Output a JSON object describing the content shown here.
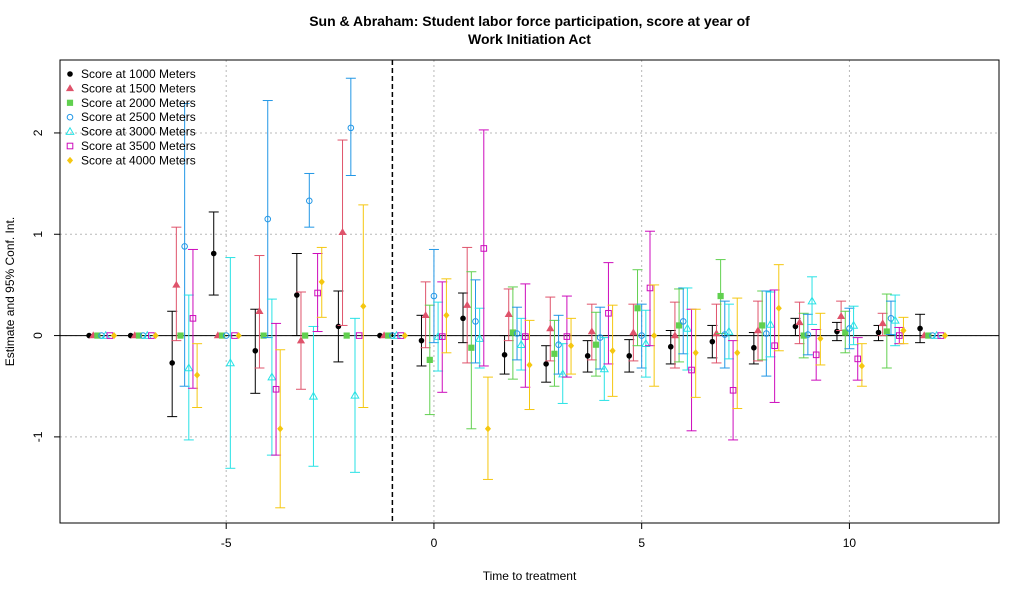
{
  "chart_data": {
    "type": "scatter",
    "title_lines": [
      "Sun & Abraham: Student labor force participation, score at year of",
      "Work Initiation Act"
    ],
    "xlabel": "Time to treatment",
    "ylabel": "Estimate and 95% Conf. Int.",
    "xlim": [
      -9,
      13.6
    ],
    "ylim": [
      -1.85,
      2.72
    ],
    "xticks": [
      -5,
      0,
      5,
      10
    ],
    "yticks": [
      -1,
      0,
      1,
      2
    ],
    "grid": true,
    "reference_line_x": -1,
    "reference_line_y": 0,
    "legend_position": "top-left",
    "series": [
      {
        "name": "Score at 1000 Meters",
        "color": "#000000",
        "marker": "circle-filled",
        "points": [
          [
            -8,
            0,
            0,
            0
          ],
          [
            -7,
            0,
            0,
            0
          ],
          [
            -6,
            -0.27,
            -0.8,
            0.24
          ],
          [
            -5,
            0.81,
            0.4,
            1.22
          ],
          [
            -4,
            -0.15,
            -0.57,
            0.26
          ],
          [
            -3,
            0.4,
            0,
            0.81
          ],
          [
            -2,
            0.09,
            -0.26,
            0.44
          ],
          [
            -1,
            0,
            0,
            0
          ],
          [
            0,
            -0.05,
            -0.3,
            0.2
          ],
          [
            1,
            0.17,
            -0.07,
            0.42
          ],
          [
            2,
            -0.19,
            -0.38,
            0
          ],
          [
            3,
            -0.28,
            -0.46,
            -0.1
          ],
          [
            4,
            -0.2,
            -0.36,
            -0.05
          ],
          [
            5,
            -0.2,
            -0.36,
            -0.04
          ],
          [
            6,
            -0.11,
            -0.28,
            0.05
          ],
          [
            7,
            -0.06,
            -0.22,
            0.1
          ],
          [
            8,
            -0.12,
            -0.28,
            0.03
          ],
          [
            9,
            0.09,
            0,
            0.17
          ],
          [
            10,
            0.04,
            -0.05,
            0.13
          ],
          [
            11,
            0.03,
            -0.05,
            0.1
          ],
          [
            12,
            0.07,
            -0.07,
            0.21
          ]
        ]
      },
      {
        "name": "Score at 1500 Meters",
        "color": "#DF536B",
        "marker": "triangle-filled",
        "points": [
          [
            -8,
            0,
            0,
            0
          ],
          [
            -7,
            0,
            0,
            0
          ],
          [
            -6,
            0.5,
            -0.05,
            1.07
          ],
          [
            -5,
            0,
            0,
            0
          ],
          [
            -4,
            0.24,
            -0.32,
            0.79
          ],
          [
            -3,
            -0.05,
            -0.53,
            0.43
          ],
          [
            -2,
            1.02,
            0.1,
            1.93
          ],
          [
            -1,
            0,
            0,
            0
          ],
          [
            0,
            0.2,
            -0.12,
            0.53
          ],
          [
            1,
            0.3,
            -0.27,
            0.87
          ],
          [
            2,
            0.21,
            -0.05,
            0.46
          ],
          [
            3,
            0.07,
            -0.25,
            0.38
          ],
          [
            4,
            0.04,
            -0.24,
            0.31
          ],
          [
            5,
            0.03,
            -0.25,
            0.31
          ],
          [
            6,
            0,
            -0.32,
            0.33
          ],
          [
            7,
            0.02,
            -0.27,
            0.31
          ],
          [
            8,
            0.05,
            -0.25,
            0.34
          ],
          [
            9,
            0.13,
            -0.08,
            0.33
          ],
          [
            10,
            0.19,
            0.05,
            0.34
          ],
          [
            11,
            0.12,
            0,
            0.22
          ],
          [
            12,
            0,
            0,
            0
          ]
        ]
      },
      {
        "name": "Score at 2000 Meters",
        "color": "#61D04F",
        "marker": "square-filled",
        "points": [
          [
            -8,
            0,
            0,
            0
          ],
          [
            -7,
            0,
            0,
            0
          ],
          [
            -6,
            0,
            0,
            0
          ],
          [
            -5,
            0,
            0,
            0
          ],
          [
            -4,
            0,
            0,
            0
          ],
          [
            -3,
            0,
            0,
            0
          ],
          [
            -2,
            0,
            0,
            0
          ],
          [
            -1,
            0,
            0,
            0
          ],
          [
            0,
            -0.24,
            -0.78,
            0.3
          ],
          [
            1,
            -0.12,
            -0.92,
            0.63
          ],
          [
            2,
            0.03,
            -0.43,
            0.48
          ],
          [
            3,
            -0.18,
            -0.5,
            0.15
          ],
          [
            4,
            -0.09,
            -0.4,
            0.23
          ],
          [
            5,
            0.27,
            -0.1,
            0.65
          ],
          [
            6,
            0.1,
            -0.26,
            0.46
          ],
          [
            7,
            0.39,
            0.02,
            0.75
          ],
          [
            8,
            0.1,
            -0.24,
            0.44
          ],
          [
            9,
            0,
            -0.22,
            0.22
          ],
          [
            10,
            0.03,
            -0.17,
            0.24
          ],
          [
            11,
            0.04,
            -0.32,
            0.41
          ],
          [
            12,
            0,
            0,
            0
          ]
        ]
      },
      {
        "name": "Score at 2500 Meters",
        "color": "#2297E6",
        "marker": "circle-open",
        "points": [
          [
            -8,
            0,
            0,
            0
          ],
          [
            -7,
            0,
            0,
            0
          ],
          [
            -6,
            0.88,
            -0.5,
            2.29
          ],
          [
            -5,
            0,
            0,
            0
          ],
          [
            -4,
            1.15,
            -0.02,
            2.32
          ],
          [
            -3,
            1.33,
            1.07,
            1.6
          ],
          [
            -2,
            2.05,
            1.58,
            2.54
          ],
          [
            -1,
            0,
            0,
            0
          ],
          [
            0,
            0.39,
            -0.07,
            0.85
          ],
          [
            1,
            0.14,
            -0.27,
            0.55
          ],
          [
            2,
            0.02,
            -0.24,
            0.28
          ],
          [
            3,
            -0.09,
            -0.38,
            0.2
          ],
          [
            4,
            -0.02,
            -0.33,
            0.28
          ],
          [
            5,
            0,
            -0.32,
            0.31
          ],
          [
            6,
            0.14,
            -0.18,
            0.47
          ],
          [
            7,
            0.01,
            -0.32,
            0.34
          ],
          [
            8,
            0.02,
            -0.4,
            0.44
          ],
          [
            9,
            0.01,
            -0.19,
            0.21
          ],
          [
            10,
            0.07,
            -0.13,
            0.27
          ],
          [
            11,
            0.17,
            0.01,
            0.34
          ],
          [
            12,
            0,
            0,
            0
          ]
        ]
      },
      {
        "name": "Score at 3000 Meters",
        "color": "#28E2E5",
        "marker": "triangle-open",
        "points": [
          [
            -8,
            0,
            0,
            0
          ],
          [
            -7,
            0,
            0,
            0
          ],
          [
            -6,
            -0.32,
            -1.03,
            0.4
          ],
          [
            -5,
            -0.27,
            -1.31,
            0.77
          ],
          [
            -4,
            -0.41,
            -1.18,
            0.36
          ],
          [
            -3,
            -0.6,
            -1.29,
            0.09
          ],
          [
            -2,
            -0.59,
            -1.35,
            0.17
          ],
          [
            -1,
            0,
            0,
            0
          ],
          [
            0,
            -0.01,
            -0.35,
            0.33
          ],
          [
            1,
            -0.03,
            -0.32,
            0.27
          ],
          [
            2,
            -0.09,
            -0.34,
            0.17
          ],
          [
            3,
            -0.38,
            -0.67,
            -0.08
          ],
          [
            4,
            -0.33,
            -0.64,
            -0.02
          ],
          [
            5,
            -0.08,
            -0.41,
            0.25
          ],
          [
            6,
            0.07,
            -0.34,
            0.47
          ],
          [
            7,
            0.04,
            -0.23,
            0.31
          ],
          [
            8,
            0.11,
            -0.21,
            0.43
          ],
          [
            9,
            0.34,
            0.11,
            0.58
          ],
          [
            10,
            0.1,
            -0.09,
            0.29
          ],
          [
            11,
            0.15,
            -0.1,
            0.4
          ],
          [
            12,
            0,
            0,
            0
          ]
        ]
      },
      {
        "name": "Score at 3500 Meters",
        "color": "#CD0BBC",
        "marker": "square-open",
        "points": [
          [
            -8,
            0,
            0,
            0
          ],
          [
            -7,
            0,
            0,
            0
          ],
          [
            -6,
            0.17,
            -0.52,
            0.85
          ],
          [
            -5,
            0,
            0,
            0
          ],
          [
            -4,
            -0.53,
            -1.18,
            0.12
          ],
          [
            -3,
            0.42,
            0.04,
            0.81
          ],
          [
            -2,
            0,
            0,
            0
          ],
          [
            -1,
            0,
            0,
            0
          ],
          [
            0,
            -0.01,
            -0.56,
            0.53
          ],
          [
            1,
            0.86,
            -0.3,
            2.03
          ],
          [
            2,
            -0.01,
            -0.51,
            0.51
          ],
          [
            3,
            -0.01,
            -0.41,
            0.39
          ],
          [
            4,
            0.22,
            -0.28,
            0.72
          ],
          [
            5,
            0.47,
            -0.1,
            1.03
          ],
          [
            6,
            -0.34,
            -0.94,
            0.26
          ],
          [
            7,
            -0.54,
            -1.03,
            -0.05
          ],
          [
            8,
            -0.1,
            -0.66,
            0.45
          ],
          [
            9,
            -0.19,
            -0.44,
            0.06
          ],
          [
            10,
            -0.23,
            -0.44,
            -0.02
          ],
          [
            11,
            0,
            -0.08,
            0.08
          ],
          [
            12,
            0,
            0,
            0
          ]
        ]
      },
      {
        "name": "Score at 4000 Meters",
        "color": "#F5C710",
        "marker": "diamond-filled",
        "points": [
          [
            -8,
            0,
            0,
            0
          ],
          [
            -7,
            0,
            0,
            0
          ],
          [
            -6,
            -0.39,
            -0.71,
            -0.08
          ],
          [
            -5,
            0,
            0,
            0
          ],
          [
            -4,
            -0.92,
            -1.7,
            -0.14
          ],
          [
            -3,
            0.53,
            0.18,
            0.87
          ],
          [
            -2,
            0.29,
            -0.71,
            1.29
          ],
          [
            -1,
            0,
            0,
            0
          ],
          [
            0,
            0.2,
            -0.17,
            0.56
          ],
          [
            1,
            -0.92,
            -1.42,
            -0.41
          ],
          [
            2,
            -0.29,
            -0.73,
            0.15
          ],
          [
            3,
            -0.1,
            -0.38,
            0.17
          ],
          [
            4,
            -0.15,
            -0.6,
            0.3
          ],
          [
            5,
            0,
            -0.5,
            0.5
          ],
          [
            6,
            -0.17,
            -0.61,
            0.26
          ],
          [
            7,
            -0.17,
            -0.72,
            0.37
          ],
          [
            8,
            0.27,
            -0.15,
            0.7
          ],
          [
            9,
            -0.03,
            -0.29,
            0.22
          ],
          [
            10,
            -0.3,
            -0.5,
            -0.08
          ],
          [
            11,
            0.05,
            -0.08,
            0.18
          ],
          [
            12,
            0,
            0,
            0
          ]
        ]
      }
    ]
  }
}
